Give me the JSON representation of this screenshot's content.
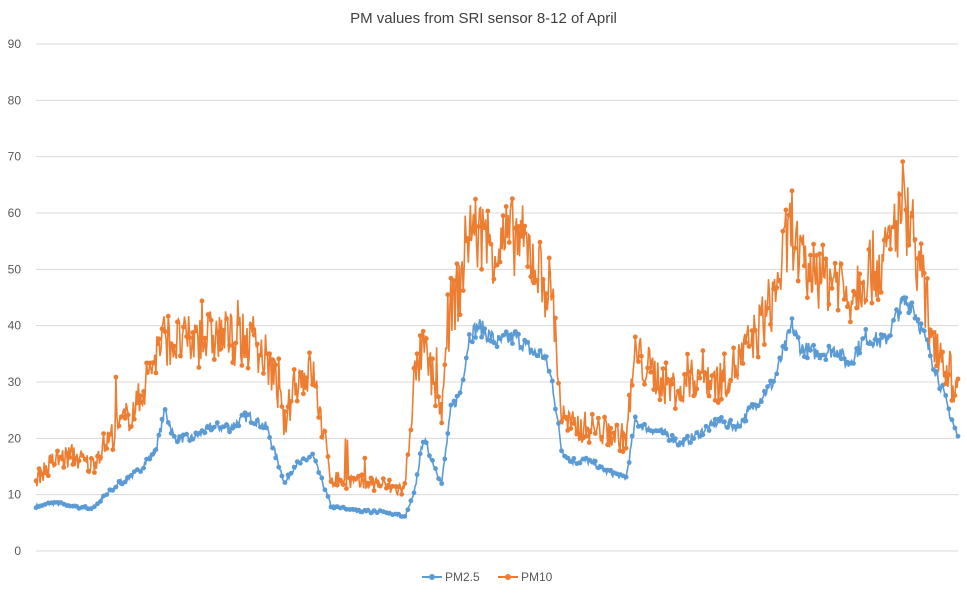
{
  "chart_data": {
    "type": "line",
    "title": "PM values from SRI sensor  8-12 of April",
    "xlabel": "",
    "ylabel": "",
    "ylim": [
      0,
      90
    ],
    "yticks": [
      0,
      10,
      20,
      30,
      40,
      50,
      60,
      70,
      80,
      90
    ],
    "grid": true,
    "legend": "bottom",
    "x": [
      0,
      0.02,
      0.04,
      0.06,
      0.07,
      0.09,
      0.11,
      0.13,
      0.14,
      0.15,
      0.17,
      0.19,
      0.21,
      0.23,
      0.25,
      0.26,
      0.27,
      0.28,
      0.3,
      0.32,
      0.35,
      0.37,
      0.39,
      0.4,
      0.41,
      0.42,
      0.44,
      0.45,
      0.46,
      0.47,
      0.48,
      0.5,
      0.52,
      0.54,
      0.55,
      0.56,
      0.57,
      0.58,
      0.6,
      0.62,
      0.64,
      0.65,
      0.66,
      0.68,
      0.7,
      0.72,
      0.74,
      0.76,
      0.78,
      0.8,
      0.82,
      0.83,
      0.85,
      0.87,
      0.88,
      0.9,
      0.92,
      0.94,
      0.95,
      0.97,
      1.0
    ],
    "series": [
      {
        "name": "PM2.5",
        "color": "#5B9BD5",
        "values": [
          8,
          8.5,
          8,
          7.5,
          9,
          12,
          14,
          18,
          25,
          20,
          20,
          22,
          22,
          24,
          22,
          17,
          12,
          15,
          17,
          8,
          7,
          7,
          6.5,
          6,
          10,
          20,
          12,
          25,
          28,
          38,
          40,
          37,
          38,
          35,
          35,
          30,
          18,
          16,
          16,
          14,
          13,
          23,
          22,
          21,
          19,
          21,
          23,
          22,
          26,
          30,
          40,
          36,
          35,
          36,
          33,
          38,
          37,
          44,
          44,
          35,
          20
        ]
      },
      {
        "name": "PM10",
        "color": "#ED7D31",
        "values": [
          13,
          16,
          17,
          15,
          18,
          22,
          26,
          35,
          38,
          37,
          37,
          38,
          38,
          37,
          34,
          30,
          22,
          30,
          32,
          13,
          12,
          12,
          11,
          11,
          30,
          36,
          25,
          43,
          47,
          58,
          56,
          54,
          56,
          52,
          48,
          46,
          24,
          22,
          22,
          21,
          20,
          35,
          33,
          30,
          28,
          32,
          30,
          33,
          38,
          45,
          58,
          50,
          48,
          49,
          45,
          50,
          51,
          62,
          58,
          40,
          28
        ]
      }
    ]
  }
}
